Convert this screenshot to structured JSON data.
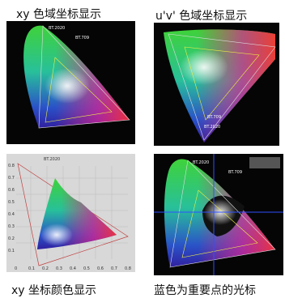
{
  "panels": [
    {
      "caption": "xy 色域坐标显示",
      "labels": [
        "BT.2020",
        "BT.709"
      ]
    },
    {
      "caption": "u'v' 色域坐标显示",
      "labels": [
        "BT.709",
        "BT.2020"
      ]
    },
    {
      "caption": "xy 坐标颜色显示",
      "labels": [
        "BT.2020"
      ],
      "y_axis": [
        "0.8",
        "0.7",
        "0.6",
        "0.5",
        "0.4",
        "0.3",
        "0.2",
        "0.1"
      ],
      "x_axis": [
        "0",
        "0.1",
        "0.2",
        "0.3",
        "0.4",
        "0.5",
        "0.6",
        "0.7",
        "0.8"
      ]
    },
    {
      "caption": "蓝色为重要点的光标",
      "labels": [
        "BT.2020",
        "BT.709"
      ]
    }
  ]
}
